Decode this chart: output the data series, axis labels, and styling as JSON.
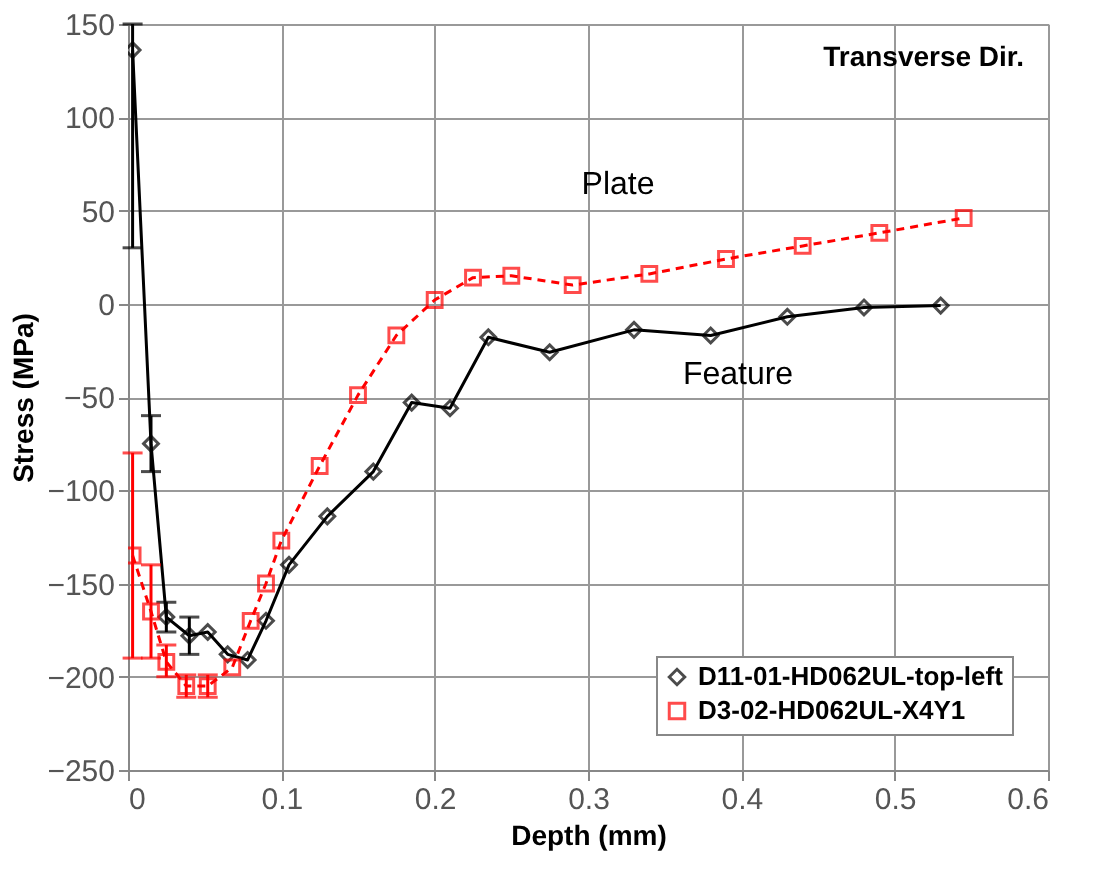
{
  "chart_data": {
    "type": "line",
    "xlabel": "Depth (mm)",
    "ylabel": "Stress (MPa)",
    "xlim": [
      0,
      0.6
    ],
    "xticks": [
      0,
      0.1,
      0.2,
      0.3,
      0.4,
      0.5,
      0.6
    ],
    "ylim": [
      -250,
      150
    ],
    "yticks": [
      -250,
      -200,
      -150,
      -100,
      -50,
      0,
      50,
      100,
      150
    ],
    "grid": true,
    "legend": "bottom right",
    "series": [
      {
        "name": "D11-01-HD062UL-top-left",
        "color": "#000000",
        "marker": "diamond",
        "line_style": "solid",
        "x": [
          0.003,
          0.015,
          0.025,
          0.04,
          0.052,
          0.065,
          0.078,
          0.09,
          0.105,
          0.13,
          0.16,
          0.185,
          0.21,
          0.235,
          0.275,
          0.33,
          0.38,
          0.43,
          0.48,
          0.53
        ],
        "values": [
          136,
          -75,
          -168,
          -178,
          -176,
          -188,
          -191,
          -170,
          -140,
          -114,
          -90,
          -53,
          -56,
          -18,
          -26,
          -14,
          -17,
          -7,
          -2,
          -1
        ],
        "errors": [
          [
            30,
            150
          ],
          15,
          8,
          10,
          null,
          null,
          null,
          null,
          null,
          null,
          null,
          null,
          null,
          null,
          null,
          null,
          null,
          null,
          null,
          null
        ]
      },
      {
        "name": "D3-02-HD062UL-X4Y1",
        "color": "#ff0000",
        "marker": "square",
        "line_style": "dashed",
        "x": [
          0.003,
          0.015,
          0.025,
          0.038,
          0.052,
          0.068,
          0.08,
          0.09,
          0.1,
          0.125,
          0.15,
          0.175,
          0.2,
          0.225,
          0.25,
          0.29,
          0.34,
          0.39,
          0.44,
          0.49,
          0.545
        ],
        "values": [
          -135,
          -165,
          -192,
          -205,
          -205,
          -195,
          -170,
          -150,
          -127,
          -87,
          -49,
          -17,
          2,
          14,
          15,
          10,
          16,
          24,
          31,
          38,
          46
        ],
        "errors": [
          [
            -190,
            -80
          ],
          [
            -190,
            -140
          ],
          [
            -200,
            -183
          ],
          6,
          6,
          null,
          null,
          null,
          null,
          null,
          null,
          null,
          null,
          null,
          null,
          null,
          null,
          null,
          null,
          null,
          null
        ]
      }
    ],
    "annotations": [
      "Transverse Dir.",
      "Plate",
      "Feature"
    ]
  }
}
